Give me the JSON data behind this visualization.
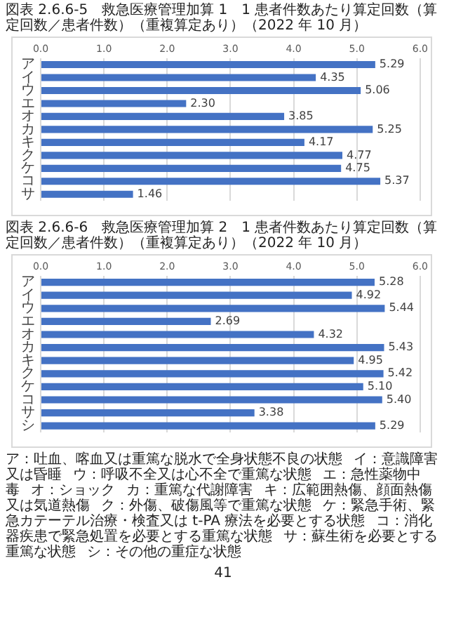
{
  "chart_data": [
    {
      "type": "bar",
      "orientation": "horizontal",
      "title": "図表 2.6.6-5　救急医療管理加算 1　1 患者件数あたり算定回数（算定回数／患者件数）（重複算定あり）（2022 年 10 月）",
      "categories": [
        "ア",
        "イ",
        "ウ",
        "エ",
        "オ",
        "カ",
        "キ",
        "ク",
        "ケ",
        "コ",
        "サ"
      ],
      "values": [
        5.29,
        4.35,
        5.06,
        2.3,
        3.85,
        5.25,
        4.17,
        4.77,
        4.75,
        5.37,
        1.46
      ],
      "value_labels": [
        "5.29",
        "4.35",
        "5.06",
        "2.30",
        "3.85",
        "5.25",
        "4.17",
        "4.77",
        "4.75",
        "5.37",
        "1.46"
      ],
      "color": "#4472c4",
      "xlim": [
        0,
        6
      ],
      "xticks": [
        {
          "value": 0,
          "label": "0.0"
        },
        {
          "value": 1,
          "label": "1.0"
        },
        {
          "value": 2,
          "label": "2.0"
        },
        {
          "value": 3,
          "label": "3.0"
        },
        {
          "value": 4,
          "label": "4.0"
        },
        {
          "value": 5,
          "label": "5.0"
        },
        {
          "value": 6,
          "label": "6.0"
        }
      ],
      "grid": "x"
    },
    {
      "type": "bar",
      "orientation": "horizontal",
      "title": "図表 2.6.6-6　救急医療管理加算 2　1 患者件数あたり算定回数（算定回数／患者件数）（重複算定あり）（2022 年 10 月）",
      "categories": [
        "ア",
        "イ",
        "ウ",
        "エ",
        "オ",
        "カ",
        "キ",
        "ク",
        "ケ",
        "コ",
        "サ",
        "シ"
      ],
      "values": [
        5.28,
        4.92,
        5.44,
        2.69,
        4.32,
        5.43,
        4.95,
        5.42,
        5.1,
        5.4,
        3.38,
        5.29
      ],
      "value_labels": [
        "5.28",
        "4.92",
        "5.44",
        "2.69",
        "4.32",
        "5.43",
        "4.95",
        "5.42",
        "5.10",
        "5.40",
        "3.38",
        "5.29"
      ],
      "color": "#4472c4",
      "xlim": [
        0,
        6
      ],
      "xticks": [
        {
          "value": 0,
          "label": "0.0"
        },
        {
          "value": 1,
          "label": "1.0"
        },
        {
          "value": 2,
          "label": "2.0"
        },
        {
          "value": 3,
          "label": "3.0"
        },
        {
          "value": 4,
          "label": "4.0"
        },
        {
          "value": 5,
          "label": "5.0"
        },
        {
          "value": 6,
          "label": "6.0"
        }
      ],
      "grid": "x",
      "annotations": [
        "ア：吐血、喀血又は重篤な脱水で全身状態不良の状態",
        "イ：意識障害又は昏睡",
        "ウ：呼吸不全又は心不全で重篤な状態",
        "エ：急性薬物中毒",
        "オ：ショック",
        "カ：重篤な代謝障害",
        "キ：広範囲熱傷、顔面熱傷又は気道熱傷",
        "ク：外傷、破傷風等で重篤な状態",
        "ケ：緊急手術、緊急カテーテル治療・検査又は t-PA 療法を必要とする状態",
        "コ：消化器疾患で緊急処置を必要とする重篤な状態",
        "サ：蘇生術を必要とする重篤な状態",
        "シ：その他の重症な状態",
        "41"
      ]
    }
  ]
}
